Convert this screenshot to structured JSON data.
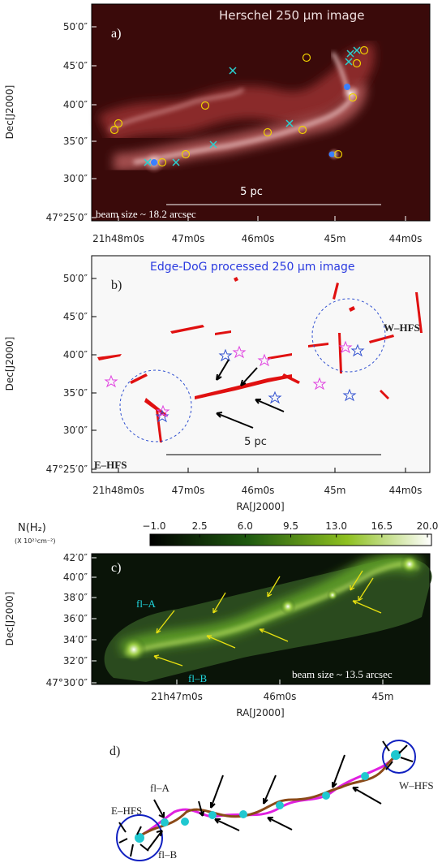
{
  "panels": [
    {
      "label": "a)",
      "title": "Herschel 250 μm image",
      "scale_bar": "5 pc",
      "beam": "beam size ~ 18.2 arcsec",
      "y_label": "Dec[J2000]",
      "y_ticks": [
        "50′0″",
        "45′0″",
        "40′0″",
        "35′0″",
        "30′0″",
        "47°25′0″"
      ],
      "x_ticks": [
        "21h48m0s",
        "47m0s",
        "46m0s",
        "45m",
        "44m0s"
      ]
    },
    {
      "label": "b)",
      "title": "Edge-DoG processed 250 μm image",
      "scale_bar": "5 pc",
      "hub_west": "W–HFS",
      "hub_east": "E–HFS",
      "y_label": "Dec[J2000]",
      "x_label": "RA[J2000]",
      "y_ticks": [
        "50′0″",
        "45′0″",
        "40′0″",
        "35′0″",
        "30′0″",
        "47°25′0″"
      ],
      "x_ticks": [
        "21h48m0s",
        "47m0s",
        "46m0s",
        "45m",
        "44m0s"
      ]
    },
    {
      "label": "c)",
      "colorbar_label": "N(H₂)",
      "colorbar_unit": "(X 10²¹cm⁻²)",
      "colorbar_ticks": [
        "−1.0",
        "2.5",
        "6.0",
        "9.5",
        "13.0",
        "16.5",
        "20.0"
      ],
      "filament_a": "fl–A",
      "filament_b": "fl–B",
      "beam": "beam size ~ 13.5 arcsec",
      "y_label": "Dec[J2000]",
      "x_label": "RA[J2000]",
      "y_ticks": [
        "42′0″",
        "40′0″",
        "38′0″",
        "36′0″",
        "34′0″",
        "32′0″",
        "47°30′0″"
      ],
      "x_ticks": [
        "21h47m0s",
        "46m0s",
        "45m"
      ]
    },
    {
      "label": "d)",
      "filament_a": "fl–A",
      "filament_b": "fl–B",
      "hub_east": "E–HFS",
      "hub_west": "W–HFS"
    }
  ]
}
